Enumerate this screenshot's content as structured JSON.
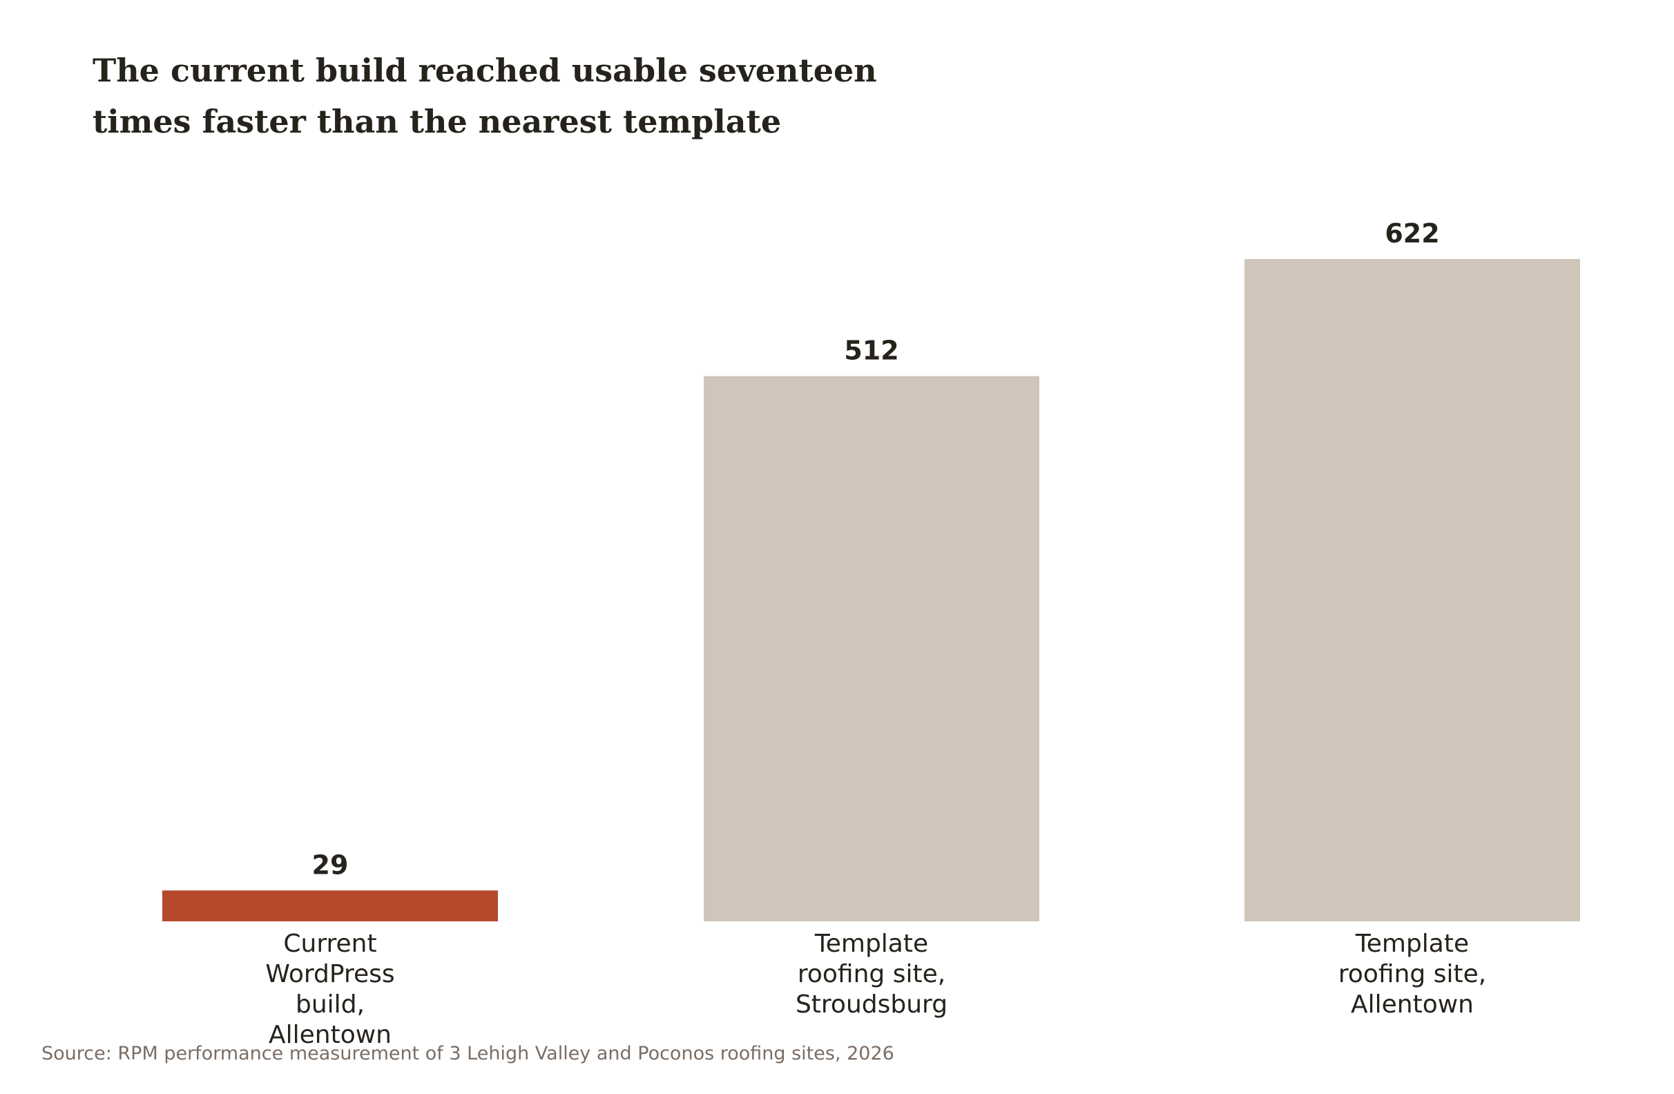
{
  "chart_data": {
    "type": "bar",
    "title": "The current build reached usable seventeen times faster than the nearest template",
    "title_lines": [
      "The current build reached usable seventeen",
      "times faster than the nearest template"
    ],
    "categories": [
      "Current WordPress build, Allentown",
      "Template roofing site, Stroudsburg",
      "Template roofing site, Allentown"
    ],
    "category_label_lines": [
      [
        "Current",
        "WordPress",
        "build,",
        "Allentown"
      ],
      [
        "Template",
        "roofing site,",
        "Stroudsburg"
      ],
      [
        "Template",
        "roofing site,",
        "Allentown"
      ]
    ],
    "values": [
      29,
      512,
      622
    ],
    "value_labels": [
      "29",
      "512",
      "622"
    ],
    "bar_colors": [
      "#b8482b",
      "#cfc5ba",
      "#cfc5ba"
    ],
    "ylim": [
      0,
      622
    ],
    "grid": false,
    "source": "Source: RPM performance measurement of 3 Lehigh Valley and Poconos roofing sites, 2026"
  }
}
